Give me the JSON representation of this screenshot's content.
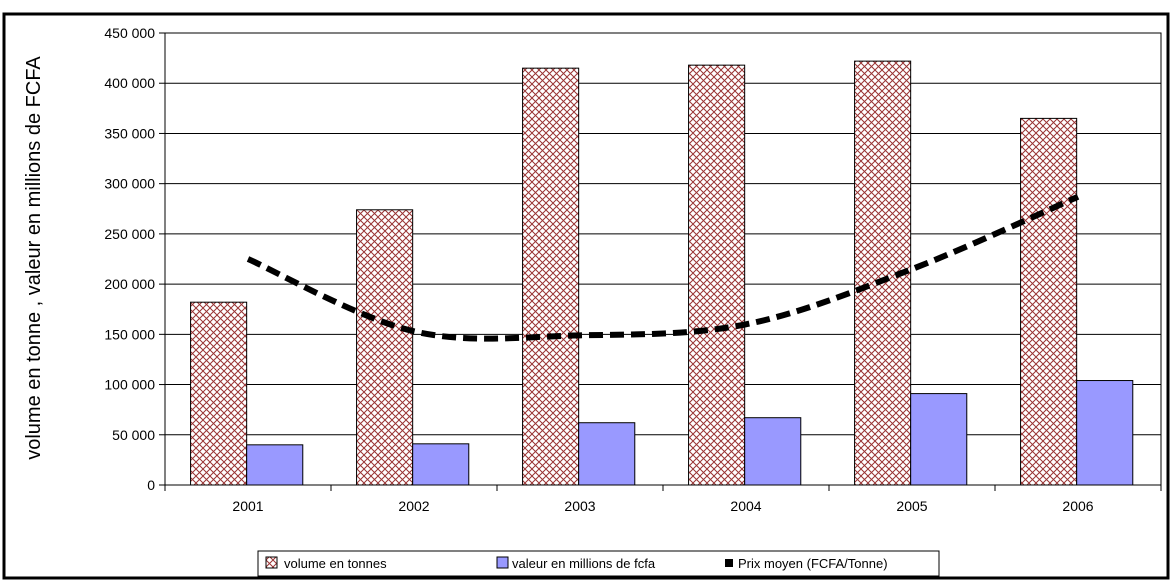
{
  "chart_data": {
    "type": "bar",
    "categories": [
      "2001",
      "2002",
      "2003",
      "2004",
      "2005",
      "2006"
    ],
    "series": [
      {
        "name": "volume en tonnes",
        "kind": "bar",
        "pattern": "crosshatch",
        "color": "#993333",
        "values": [
          182000,
          274000,
          415000,
          418000,
          422000,
          365000
        ]
      },
      {
        "name": "valeur en millions de fcfa",
        "kind": "bar",
        "color": "#9999ff",
        "values": [
          40000,
          41000,
          62000,
          67000,
          91000,
          104000
        ]
      },
      {
        "name": "Prix moyen (FCFA/Tonne)",
        "kind": "line",
        "style": "dashed",
        "color": "#000000",
        "values": [
          225000,
          153000,
          149000,
          160000,
          215000,
          287000
        ]
      }
    ],
    "ylabel": "volume en tonne , valeur en millions de FCFA",
    "ylim": [
      0,
      450000
    ],
    "yticks": [
      0,
      50000,
      100000,
      150000,
      200000,
      250000,
      300000,
      350000,
      400000,
      450000
    ],
    "ytick_labels": [
      "0",
      "50 000",
      "100 000",
      "150 000",
      "200 000",
      "250 000",
      "300 000",
      "350 000",
      "400 000",
      "450 000"
    ],
    "grid": true,
    "legend_position": "bottom"
  }
}
